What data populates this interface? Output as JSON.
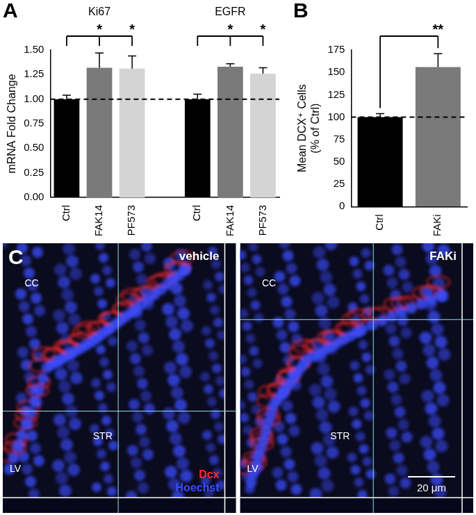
{
  "chart_data": [
    {
      "type": "bar",
      "panel": "A",
      "ylabel": "mRNA Fold Change",
      "categories": [
        "Ctrl",
        "FAK14",
        "PF573",
        null,
        "Ctrl",
        "FAK14",
        "PF573"
      ],
      "values": [
        1.0,
        1.32,
        1.31,
        null,
        1.0,
        1.33,
        1.26
      ],
      "errors": [
        0.04,
        0.15,
        0.13,
        null,
        0.05,
        0.03,
        0.06
      ],
      "colors": [
        "#000000",
        "#7a7a7a",
        "#d4d4d4",
        null,
        "#000000",
        "#7a7a7a",
        "#d4d4d4"
      ],
      "groups": [
        {
          "name": "Ki67",
          "first": 0,
          "last": 2
        },
        {
          "name": "EGFR",
          "first": 4,
          "last": 6
        }
      ],
      "significance": [
        {
          "from": 0,
          "to": 1,
          "label": "*"
        },
        {
          "from": 0,
          "to": 2,
          "label": "*"
        },
        {
          "from": 4,
          "to": 5,
          "label": "*"
        },
        {
          "from": 4,
          "to": 6,
          "label": "*"
        }
      ],
      "reference_line": 1.0,
      "ylim": [
        0,
        1.5
      ],
      "yticks": [
        {
          "value": 0,
          "label": "0.00"
        },
        {
          "value": 0.25,
          "label": "0.25"
        },
        {
          "value": 0.5,
          "label": "0.50"
        },
        {
          "value": 0.75,
          "label": "0.75"
        },
        {
          "value": 1,
          "label": "1.00"
        },
        {
          "value": 1.25,
          "label": "1.25"
        },
        {
          "value": 1.5,
          "label": "1.50"
        }
      ],
      "grid": false
    },
    {
      "type": "bar",
      "panel": "B",
      "ylabel": [
        "Mean DCX⁺ Cells",
        "(% of Ctrl)"
      ],
      "categories": [
        "Ctrl",
        "FAKi"
      ],
      "values": [
        100,
        156
      ],
      "errors": [
        4,
        15
      ],
      "colors": [
        "#000000",
        "#7a7a7a"
      ],
      "significance": [
        {
          "from": 0,
          "to": 1,
          "label": "**"
        }
      ],
      "reference_line": 100,
      "ylim": [
        0,
        175
      ],
      "yticks": [
        0,
        25,
        50,
        75,
        100,
        125,
        150,
        175
      ],
      "grid": false
    }
  ],
  "image_panel": {
    "panel": "C",
    "images": [
      {
        "label": "vehicle",
        "regions": [
          "CC",
          "STR",
          "LV"
        ]
      },
      {
        "label": "FAKi",
        "regions": [
          "CC",
          "STR",
          "LV"
        ]
      }
    ],
    "channels": [
      {
        "name": "Dcx",
        "color": "#ff2a2a"
      },
      {
        "name": "Hoechst",
        "color": "#3a4cff"
      }
    ],
    "scale_bar": "20 μm"
  }
}
